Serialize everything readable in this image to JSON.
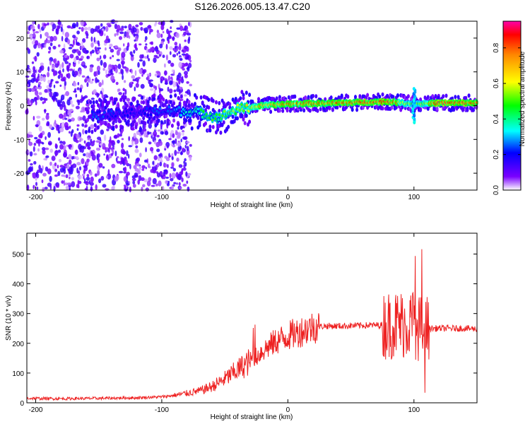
{
  "title": "S126.2026.005.13.47.C20",
  "chart_data": [
    {
      "type": "heatmap",
      "xlabel": "Height of straight line (km)",
      "ylabel": "Frequency (Hz)",
      "xlim": [
        -207,
        150
      ],
      "ylim": [
        -25,
        25
      ],
      "x_ticks": [
        -200,
        -100,
        0,
        100
      ],
      "y_ticks": [
        -20,
        -10,
        0,
        10,
        20
      ],
      "colorbar": {
        "label": "Normalized spectral amplitude",
        "range": [
          0,
          0.95
        ],
        "ticks": [
          0.0,
          0.2,
          0.4,
          0.6,
          0.8
        ]
      },
      "ridge": {
        "description_points_x": [
          -150,
          -120,
          -90,
          -70,
          -55,
          -40,
          -20,
          0,
          40,
          80,
          100,
          120,
          150
        ],
        "frequency_hz": [
          -3,
          -2,
          -1.5,
          -2,
          -3.5,
          -1,
          0,
          0.5,
          0.8,
          1.2,
          0.5,
          0.8,
          0.8
        ],
        "amplitude": [
          0.25,
          0.2,
          0.3,
          0.45,
          0.5,
          0.6,
          0.75,
          0.8,
          0.85,
          0.9,
          0.5,
          0.9,
          0.9
        ]
      }
    },
    {
      "type": "line",
      "xlabel": "Height of straight line (km)",
      "ylabel": "SNR (10 * v/v)",
      "xlim": [
        -207,
        150
      ],
      "ylim": [
        0,
        570
      ],
      "x_ticks": [
        -200,
        -100,
        0,
        100
      ],
      "y_ticks": [
        0,
        100,
        200,
        300,
        400,
        500
      ],
      "color": "#ee2222",
      "series": [
        {
          "name": "SNR",
          "x": [
            -207,
            -180,
            -150,
            -120,
            -100,
            -90,
            -80,
            -70,
            -60,
            -50,
            -40,
            -30,
            -20,
            -10,
            0,
            10,
            20,
            30,
            40,
            60,
            80,
            90,
            100,
            105,
            110,
            120,
            140,
            150
          ],
          "values": [
            15,
            14,
            15,
            17,
            20,
            25,
            32,
            40,
            55,
            80,
            110,
            140,
            175,
            205,
            225,
            240,
            255,
            258,
            258,
            260,
            262,
            265,
            268,
            250,
            250,
            250,
            250,
            248
          ]
        }
      ]
    }
  ]
}
